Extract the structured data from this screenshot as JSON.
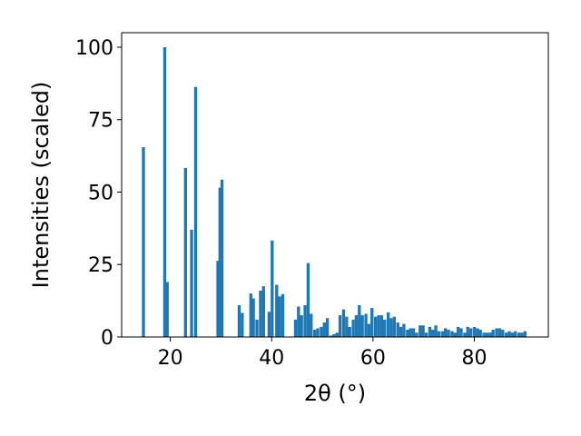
{
  "chart_data": {
    "type": "bar",
    "title": "",
    "xlabel": "2θ (°)",
    "ylabel": "Intensities (scaled)",
    "xlim": [
      10.4,
      94.6
    ],
    "ylim": [
      0,
      105
    ],
    "xticks": [
      20,
      40,
      60,
      80
    ],
    "yticks": [
      0,
      25,
      50,
      75,
      100
    ],
    "grid": false,
    "bar_color": "#1f77b4",
    "bar_width": 0.6,
    "x": [
      14.7,
      18.9,
      19.4,
      23.0,
      24.2,
      25.0,
      29.4,
      29.8,
      30.2,
      33.6,
      34.2,
      35.9,
      36.4,
      37.1,
      37.8,
      38.4,
      39.5,
      40.1,
      41.0,
      41.6,
      42.2,
      44.7,
      45.3,
      45.9,
      46.6,
      47.2,
      47.8,
      48.5,
      49.1,
      49.8,
      50.4,
      51.0,
      51.7,
      52.3,
      52.9,
      53.5,
      54.2,
      54.8,
      55.4,
      56.1,
      56.7,
      57.3,
      57.9,
      58.6,
      59.2,
      59.8,
      60.5,
      61.1,
      61.7,
      62.3,
      63.0,
      63.6,
      64.2,
      64.9,
      65.5,
      66.1,
      66.8,
      67.4,
      68.0,
      68.6,
      69.3,
      69.9,
      70.5,
      71.2,
      71.8,
      72.4,
      73.0,
      73.7,
      74.3,
      74.9,
      75.6,
      76.2,
      76.8,
      77.4,
      78.1,
      78.7,
      79.3,
      80.0,
      80.6,
      81.2,
      81.9,
      82.5,
      83.1,
      83.7,
      84.4,
      85.0,
      85.6,
      86.3,
      86.9,
      87.5,
      88.1,
      88.8,
      89.4,
      90.0
    ],
    "values": [
      65.5,
      100,
      19,
      58.3,
      37,
      86.3,
      26.3,
      51.5,
      54.3,
      11,
      8.3,
      15,
      13.3,
      6,
      16,
      17.5,
      8.7,
      33.3,
      18,
      14,
      14.8,
      6,
      10.5,
      7.5,
      11,
      25.5,
      8,
      2.5,
      3,
      3.5,
      5,
      6.5,
      0.5,
      1,
      1.5,
      7.5,
      9.5,
      7,
      3.5,
      6,
      7.5,
      11,
      7.5,
      8,
      4.5,
      10,
      7,
      7.5,
      7.5,
      6,
      8.5,
      6.5,
      7,
      5,
      3.5,
      4.5,
      2.5,
      3,
      3,
      1.5,
      4,
      4,
      1.5,
      3.5,
      2.5,
      4,
      2,
      2,
      3,
      2.5,
      2,
      1.5,
      3.5,
      3,
      1.5,
      3.5,
      3,
      3.5,
      3,
      2.5,
      1.5,
      1.5,
      1.5,
      2.5,
      3.0,
      3.0,
      2.5,
      1.5,
      2,
      1.5,
      2,
      1.5,
      1.5,
      2
    ]
  }
}
